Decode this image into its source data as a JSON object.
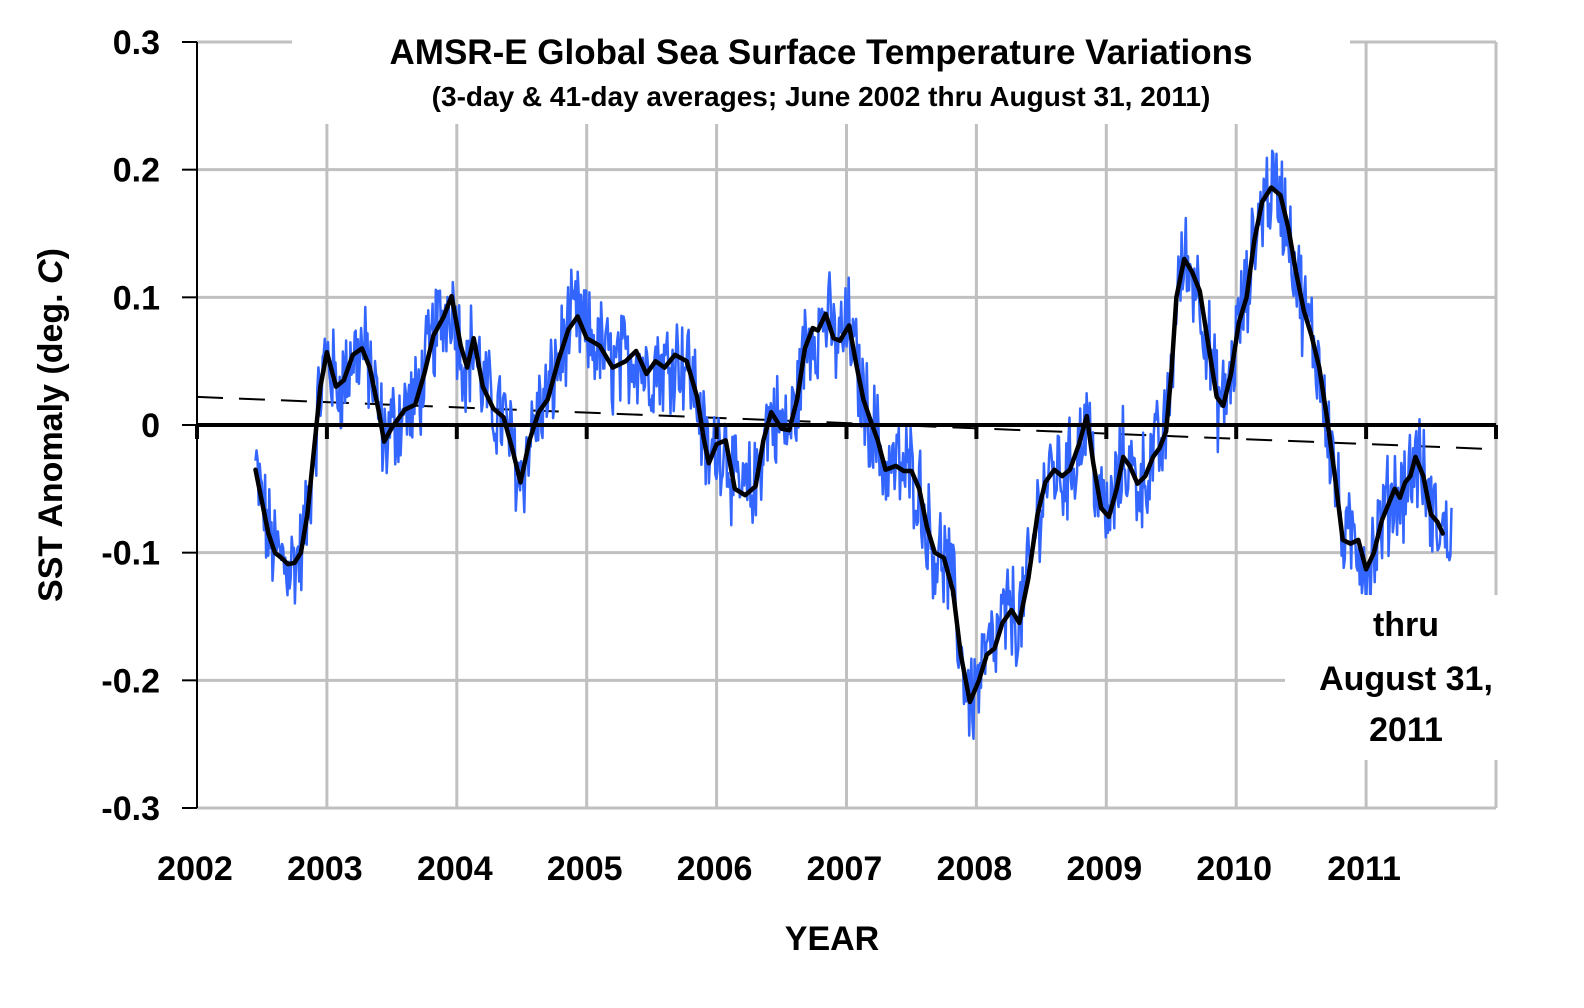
{
  "chart_data": {
    "type": "line",
    "title": "AMSR-E Global Sea Surface Temperature Variations",
    "subtitle": "(3-day & 41-day averages; June 2002 thru August 31, 2011)",
    "xlabel": "YEAR",
    "ylabel_parts": [
      "SST Anomaly (deg. ",
      "C",
      ")"
    ],
    "ylabel": "SST Anomaly (deg. C)",
    "xlim": [
      2002,
      2012
    ],
    "ylim": [
      -0.3,
      0.3
    ],
    "grid": true,
    "x_ticks": [
      2002,
      2003,
      2004,
      2005,
      2006,
      2007,
      2008,
      2009,
      2010,
      2011
    ],
    "x_tick_labels": [
      "2002",
      "2003",
      "2004",
      "2005",
      "2006",
      "2007",
      "2008",
      "2009",
      "2010",
      "2011"
    ],
    "y_ticks": [
      0.3,
      0.2,
      0.1,
      0,
      -0.1,
      -0.2,
      -0.3
    ],
    "y_tick_labels": [
      "0.3",
      "0.2",
      "0.1",
      "0",
      "-0.1",
      "-0.2",
      "-0.3"
    ],
    "annotation": [
      "thru",
      "August 31,",
      "2011"
    ],
    "annotation_position": "bottom-right",
    "colors": {
      "three_day": "#3366ff",
      "forty_one_day": "#000000",
      "trend": "#000000",
      "grid": "#c0c0c0",
      "zero_line": "#000000"
    },
    "series": [
      {
        "name": "41-day average",
        "style": "solid-thick",
        "x": [
          2002.45,
          2002.5,
          2002.55,
          2002.6,
          2002.65,
          2002.7,
          2002.75,
          2002.8,
          2002.85,
          2002.9,
          2002.95,
          2003.0,
          2003.07,
          2003.13,
          2003.2,
          2003.27,
          2003.33,
          2003.4,
          2003.44,
          2003.5,
          2003.6,
          2003.68,
          2003.75,
          2003.82,
          2003.9,
          2003.96,
          2004.03,
          2004.08,
          2004.13,
          2004.2,
          2004.28,
          2004.36,
          2004.43,
          2004.49,
          2004.56,
          2004.63,
          2004.7,
          2004.78,
          2004.86,
          2004.93,
          2005.0,
          2005.1,
          2005.2,
          2005.3,
          2005.38,
          2005.46,
          2005.53,
          2005.6,
          2005.68,
          2005.77,
          2005.85,
          2005.9,
          2005.94,
          2006.0,
          2006.07,
          2006.14,
          2006.22,
          2006.3,
          2006.36,
          2006.42,
          2006.5,
          2006.56,
          2006.62,
          2006.68,
          2006.74,
          2006.78,
          2006.84,
          2006.9,
          2006.95,
          2007.02,
          2007.08,
          2007.13,
          2007.18,
          2007.24,
          2007.3,
          2007.38,
          2007.44,
          2007.5,
          2007.56,
          2007.62,
          2007.68,
          2007.75,
          2007.82,
          2007.88,
          2007.95,
          2008.02,
          2008.08,
          2008.14,
          2008.2,
          2008.27,
          2008.33,
          2008.4,
          2008.47,
          2008.53,
          2008.6,
          2008.66,
          2008.72,
          2008.79,
          2008.85,
          2008.9,
          2008.96,
          2009.02,
          2009.08,
          2009.13,
          2009.18,
          2009.24,
          2009.3,
          2009.36,
          2009.41,
          2009.46,
          2009.5,
          2009.54,
          2009.6,
          2009.66,
          2009.72,
          2009.79,
          2009.85,
          2009.9,
          2009.96,
          2010.02,
          2010.08,
          2010.14,
          2010.2,
          2010.27,
          2010.34,
          2010.4,
          2010.46,
          2010.52,
          2010.58,
          2010.64,
          2010.7,
          2010.76,
          2010.82,
          2010.88,
          2010.94,
          2011.0,
          2011.06,
          2011.12,
          2011.18,
          2011.22,
          2011.26,
          2011.3,
          2011.34,
          2011.38,
          2011.44,
          2011.5,
          2011.55,
          2011.59
        ],
        "y": [
          -0.035,
          -0.06,
          -0.085,
          -0.1,
          -0.104,
          -0.109,
          -0.108,
          -0.1,
          -0.07,
          -0.02,
          0.03,
          0.057,
          0.03,
          0.035,
          0.055,
          0.06,
          0.045,
          0.01,
          -0.013,
          -0.002,
          0.012,
          0.016,
          0.04,
          0.07,
          0.085,
          0.101,
          0.062,
          0.045,
          0.068,
          0.03,
          0.013,
          0.006,
          -0.02,
          -0.045,
          -0.012,
          0.01,
          0.02,
          0.05,
          0.075,
          0.085,
          0.068,
          0.062,
          0.045,
          0.05,
          0.058,
          0.04,
          0.05,
          0.045,
          0.055,
          0.05,
          0.022,
          -0.01,
          -0.03,
          -0.015,
          -0.012,
          -0.05,
          -0.055,
          -0.048,
          -0.012,
          0.01,
          -0.003,
          -0.004,
          0.02,
          0.06,
          0.076,
          0.074,
          0.087,
          0.068,
          0.066,
          0.078,
          0.045,
          0.02,
          0.005,
          -0.012,
          -0.035,
          -0.032,
          -0.036,
          -0.036,
          -0.05,
          -0.08,
          -0.1,
          -0.104,
          -0.13,
          -0.18,
          -0.217,
          -0.2,
          -0.18,
          -0.175,
          -0.155,
          -0.145,
          -0.155,
          -0.12,
          -0.07,
          -0.045,
          -0.035,
          -0.04,
          -0.035,
          -0.015,
          0.007,
          -0.03,
          -0.065,
          -0.072,
          -0.05,
          -0.025,
          -0.032,
          -0.046,
          -0.04,
          -0.025,
          -0.018,
          -0.005,
          0.04,
          0.1,
          0.13,
          0.12,
          0.105,
          0.06,
          0.022,
          0.015,
          0.04,
          0.08,
          0.1,
          0.145,
          0.175,
          0.186,
          0.18,
          0.155,
          0.12,
          0.09,
          0.07,
          0.045,
          0.005,
          -0.04,
          -0.09,
          -0.093,
          -0.09,
          -0.113,
          -0.1,
          -0.075,
          -0.06,
          -0.05,
          -0.057,
          -0.045,
          -0.04,
          -0.025,
          -0.04,
          -0.07,
          -0.076,
          -0.085
        ]
      },
      {
        "name": "3-day average",
        "style": "thin-noisy",
        "note": "high-frequency series scattered around the 41-day curve",
        "x_range": [
          2002.45,
          2011.66
        ],
        "typical_spread": 0.035,
        "max_value": 0.232,
        "min_value": -0.29
      },
      {
        "name": "Linear trend",
        "style": "dashed",
        "x": [
          2002,
          2012
        ],
        "y": [
          0.022,
          -0.019
        ]
      }
    ]
  }
}
